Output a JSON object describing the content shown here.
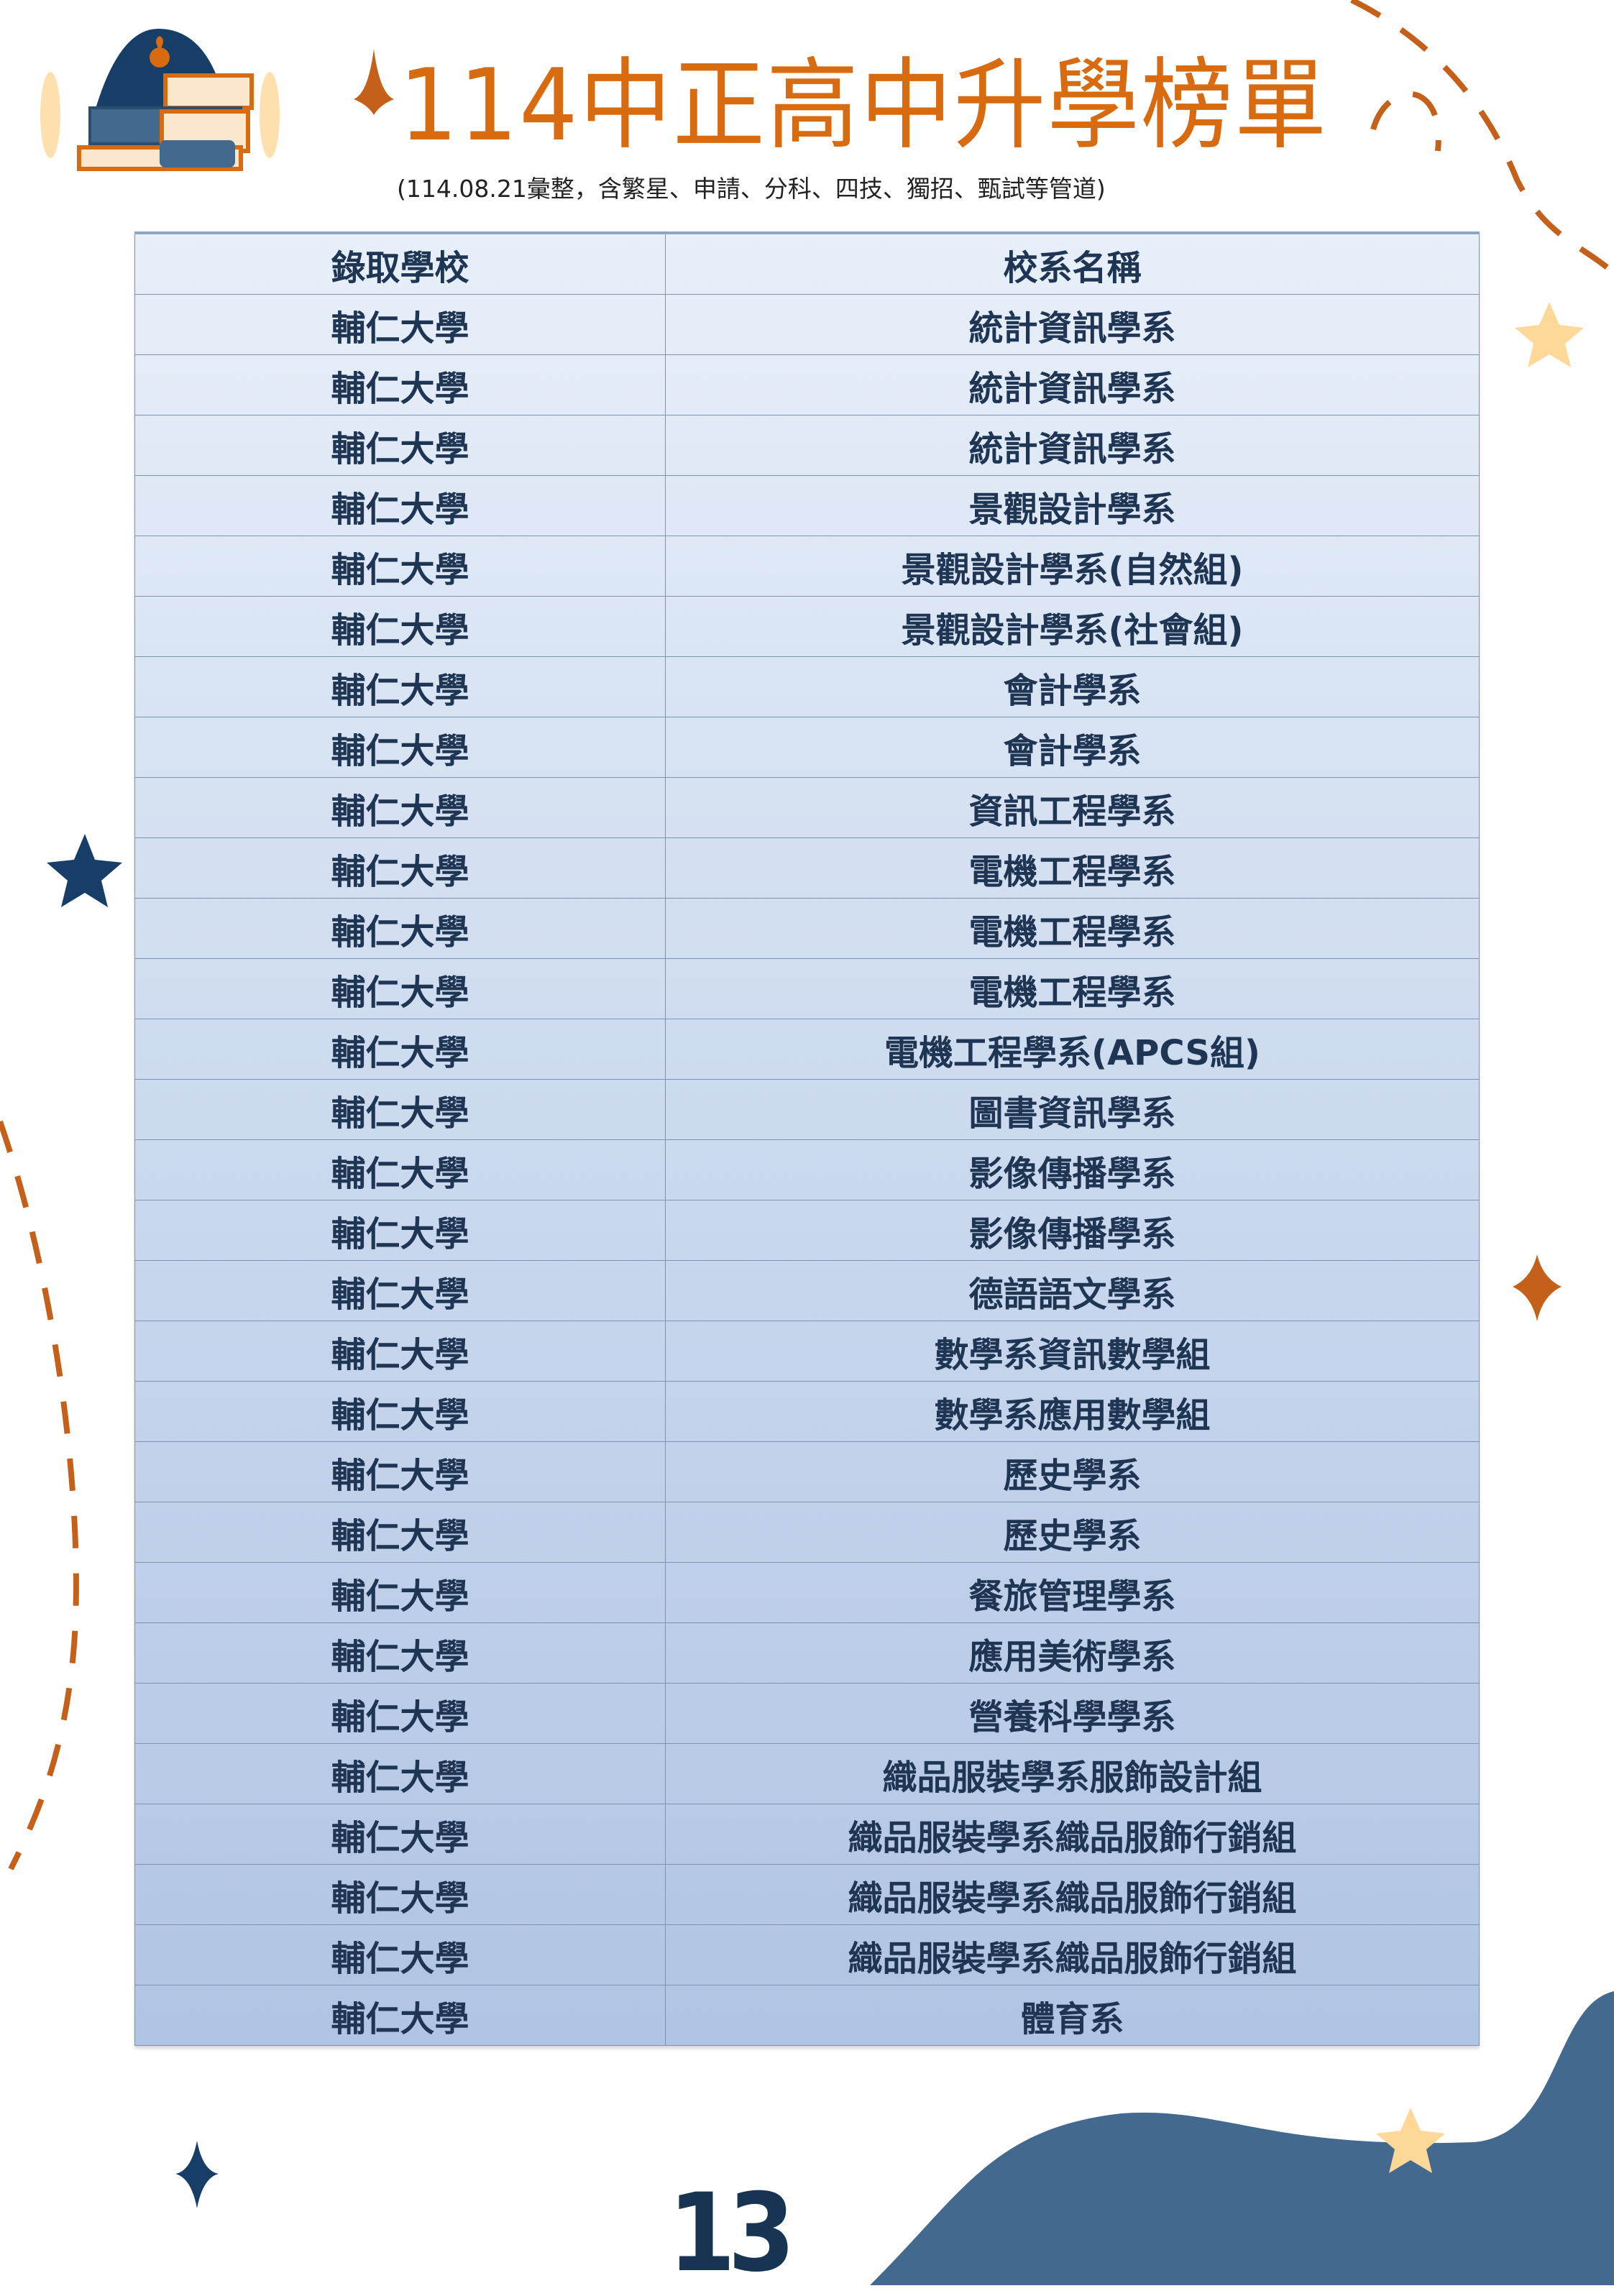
{
  "header": {
    "title": "114中正高中升學榜單",
    "subtitle": "(114.08.21彙整，含繁星、申請、分科、四技、獨招、甄試等管道)"
  },
  "table": {
    "columns": [
      "錄取學校",
      "校系名稱"
    ],
    "rows": [
      [
        "輔仁大學",
        "統計資訊學系"
      ],
      [
        "輔仁大學",
        "統計資訊學系"
      ],
      [
        "輔仁大學",
        "統計資訊學系"
      ],
      [
        "輔仁大學",
        "景觀設計學系"
      ],
      [
        "輔仁大學",
        "景觀設計學系(自然組)"
      ],
      [
        "輔仁大學",
        "景觀設計學系(社會組)"
      ],
      [
        "輔仁大學",
        "會計學系"
      ],
      [
        "輔仁大學",
        "會計學系"
      ],
      [
        "輔仁大學",
        "資訊工程學系"
      ],
      [
        "輔仁大學",
        "電機工程學系"
      ],
      [
        "輔仁大學",
        "電機工程學系"
      ],
      [
        "輔仁大學",
        "電機工程學系"
      ],
      [
        "輔仁大學",
        "電機工程學系(APCS組)"
      ],
      [
        "輔仁大學",
        "圖書資訊學系"
      ],
      [
        "輔仁大學",
        "影像傳播學系"
      ],
      [
        "輔仁大學",
        "影像傳播學系"
      ],
      [
        "輔仁大學",
        "德語語文學系"
      ],
      [
        "輔仁大學",
        "數學系資訊數學組"
      ],
      [
        "輔仁大學",
        "數學系應用數學組"
      ],
      [
        "輔仁大學",
        "歷史學系"
      ],
      [
        "輔仁大學",
        "歷史學系"
      ],
      [
        "輔仁大學",
        "餐旅管理學系"
      ],
      [
        "輔仁大學",
        "應用美術學系"
      ],
      [
        "輔仁大學",
        "營養科學學系"
      ],
      [
        "輔仁大學",
        "織品服裝學系服飾設計組"
      ],
      [
        "輔仁大學",
        "織品服裝學系織品服飾行銷組"
      ],
      [
        "輔仁大學",
        "織品服裝學系織品服飾行銷組"
      ],
      [
        "輔仁大學",
        "織品服裝學系織品服飾行銷組"
      ],
      [
        "輔仁大學",
        "體育系"
      ]
    ]
  },
  "footer": {
    "page_number": "13"
  },
  "colors": {
    "title": "#d86a10",
    "navy": "#173552",
    "wave": "#44698f",
    "star_light": "#fdd899",
    "dash": "#c4601a"
  },
  "icons": [
    "books-logo-icon",
    "sparkle-icon",
    "star-icon"
  ]
}
